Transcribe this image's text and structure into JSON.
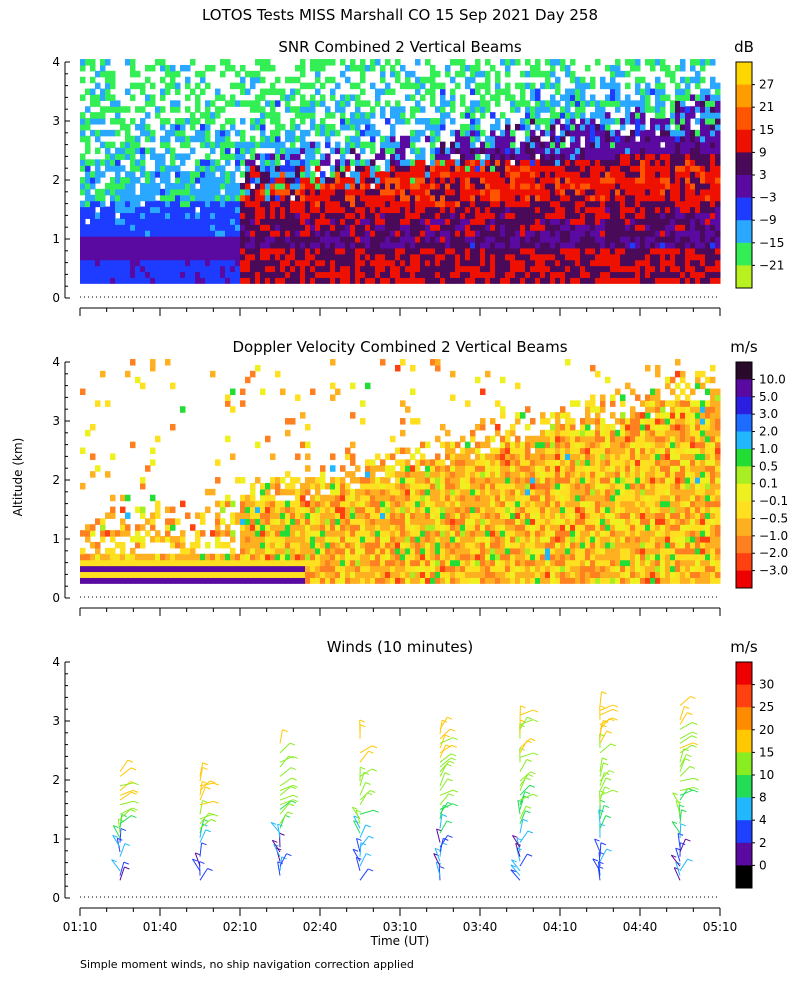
{
  "page_title": "LOTOS Tests MISS Marshall CO  15 Sep 2021 Day 258",
  "ylabel": "Altitude (km)",
  "footnote": "Simple moment winds, no ship navigation correction applied",
  "chart_data": [
    {
      "type": "heatmap",
      "title": "SNR Combined 2 Vertical Beams",
      "ylabel": "Altitude (km)",
      "ylim": [
        0,
        4
      ],
      "yticks": [
        "0",
        "1",
        "2",
        "3",
        "4"
      ],
      "time_range": [
        "01:10",
        "05:10"
      ],
      "colorbar": {
        "unit": "dB",
        "tick_labels": [
          "27",
          "21",
          "15",
          "9",
          "3",
          "−3",
          "−9",
          "−15",
          "−21"
        ],
        "colors": [
          "#ffd700",
          "#ff9d00",
          "#ff5500",
          "#ee1000",
          "#4a0a5a",
          "#5a0aa0",
          "#1e3cff",
          "#2aa8ff",
          "#33ee55",
          "#b8f020"
        ]
      },
      "layers": [
        {
          "altitude_km": [
            0.3,
            1.0
          ],
          "start": "01:10",
          "end": "02:10",
          "value_db": -3
        },
        {
          "altitude_km": [
            1.0,
            1.6
          ],
          "start": "01:10",
          "end": "02:20",
          "value_db": -15
        },
        {
          "altitude_km": [
            1.6,
            4.0
          ],
          "start": "01:10",
          "end": "02:10",
          "value_db": -21
        },
        {
          "altitude_km": [
            0.25,
            2.2
          ],
          "start": "02:10",
          "end": "05:10",
          "value_db": 3
        },
        {
          "altitude_km": [
            1.4,
            2.0
          ],
          "start": "03:00",
          "end": "05:10",
          "value_db": 12
        }
      ]
    },
    {
      "type": "heatmap",
      "title": "Doppler Velocity Combined 2 Vertical Beams",
      "ylabel": "Altitude (km)",
      "ylim": [
        0,
        4
      ],
      "yticks": [
        "0",
        "1",
        "2",
        "3",
        "4"
      ],
      "time_range": [
        "01:10",
        "05:10"
      ],
      "colorbar": {
        "unit": "m/s",
        "tick_labels": [
          "10.0",
          "5.0",
          "3.0",
          "2.0",
          "1.0",
          "0.5",
          "0.1",
          "−0.1",
          "−0.5",
          "−1.0",
          "−2.0",
          "−3.0"
        ],
        "colors": [
          "#2a0a2a",
          "#5a0aa0",
          "#2a1ee0",
          "#1e6cff",
          "#22b8ff",
          "#22dd33",
          "#a8ee22",
          "#eef020",
          "#ffe020",
          "#ffb020",
          "#ff8020",
          "#ff4010",
          "#ee0000"
        ]
      },
      "typical_velocity_m_s": -0.5
    },
    {
      "type": "wind_barbs",
      "title": "Winds (10 minutes)",
      "ylim": [
        0,
        4
      ],
      "yticks": [
        "0",
        "1",
        "2",
        "3",
        "4"
      ],
      "xlabel": "Time (UT)",
      "xticks": [
        "01:10",
        "01:40",
        "02:10",
        "02:40",
        "03:10",
        "03:40",
        "04:10",
        "04:40",
        "05:10"
      ],
      "colorbar": {
        "unit": "m/s",
        "tick_labels": [
          "30",
          "25",
          "20",
          "15",
          "10",
          "8",
          "4",
          "2",
          "0"
        ],
        "colors": [
          "#ee0000",
          "#ff4010",
          "#ff8c00",
          "#ffc800",
          "#88ee22",
          "#22dd55",
          "#22b8ff",
          "#1e40ff",
          "#5a0aa0",
          "#000000"
        ]
      },
      "profiles": [
        {
          "time": "01:25",
          "top_km": 2.2
        },
        {
          "time": "01:55",
          "top_km": 2.1
        },
        {
          "time": "02:25",
          "top_km": 2.7
        },
        {
          "time": "02:55",
          "top_km": 2.8
        },
        {
          "time": "03:25",
          "top_km": 2.9
        },
        {
          "time": "03:55",
          "top_km": 3.2
        },
        {
          "time": "04:25",
          "top_km": 3.3
        },
        {
          "time": "04:55",
          "top_km": 3.3
        }
      ]
    }
  ]
}
